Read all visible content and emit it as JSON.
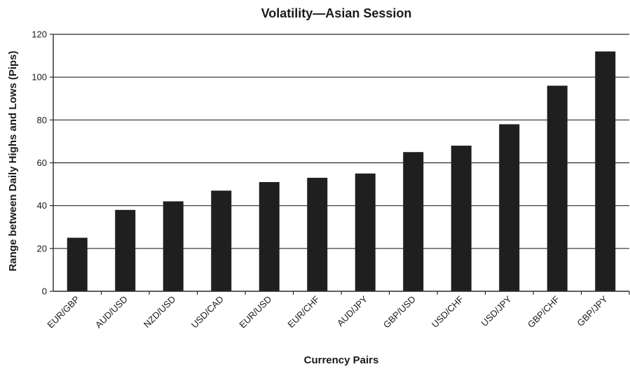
{
  "chart_data": {
    "type": "bar",
    "title": "Volatility—Asian Session",
    "xlabel": "Currency Pairs",
    "ylabel": "Range between Daily Highs and Lows (Pips)",
    "categories": [
      "EUR/GBP",
      "AUD/USD",
      "NZD/USD",
      "USD/CAD",
      "EUR/USD",
      "EUR/CHF",
      "AUD/JPY",
      "GBP/USD",
      "USD/CHF",
      "USD/JPY",
      "GBP/CHF",
      "GBP/JPY"
    ],
    "values": [
      25,
      38,
      42,
      47,
      51,
      53,
      55,
      65,
      68,
      78,
      96,
      112
    ],
    "ylim": [
      0,
      120
    ],
    "yticks": [
      0,
      20,
      40,
      60,
      80,
      100,
      120
    ],
    "grid": true,
    "legend": "none",
    "colors": {
      "bar": "#1f1f1f",
      "grid": "#2a2a2a",
      "text": "#1a1a1a"
    }
  }
}
